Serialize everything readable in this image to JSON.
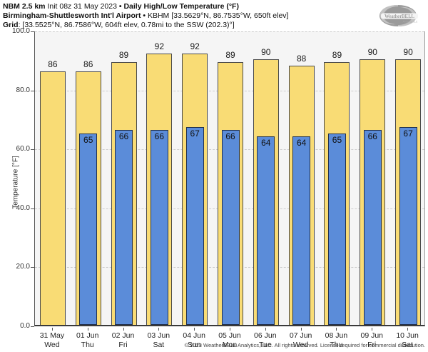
{
  "header": {
    "line1_bold1": "NBM 2.5 km",
    "line1_regular": " Init 08z 31 May 2023 ",
    "line1_sep": "• ",
    "line1_bold2": "Daily High/Low Temperature (°F)",
    "line2_bold": "Birmingham-Shuttlesworth Int'l Airport",
    "line2_sep": " • ",
    "line2_regular": "KBHM [33.5629°N, 86.7535°W, 650ft elev]",
    "line3_bold": "Grid",
    "line3_regular": ": [33.5525°N, 86.7586°W, 604ft elev, 0.78mi to the SSW (202.3)°]"
  },
  "logo": {
    "brand": "WeatherBELL",
    "sub": "Analytics LLC"
  },
  "chart_data": {
    "type": "bar",
    "title": "Daily High/Low Temperature (°F)",
    "ylabel": "Temperature [°F]",
    "ylim": [
      0,
      100
    ],
    "yticks": [
      0,
      20,
      40,
      60,
      80,
      100
    ],
    "ytick_labels": [
      "0.0",
      "20.0",
      "40.0",
      "60.0",
      "80.0",
      "100.0"
    ],
    "grid": "horizontal-dashed",
    "legend_position": "none",
    "categories": [
      {
        "date": "31 May",
        "day": "Wed"
      },
      {
        "date": "01 Jun",
        "day": "Thu"
      },
      {
        "date": "02 Jun",
        "day": "Fri"
      },
      {
        "date": "03 Jun",
        "day": "Sat"
      },
      {
        "date": "04 Jun",
        "day": "Sun"
      },
      {
        "date": "05 Jun",
        "day": "Mon"
      },
      {
        "date": "06 Jun",
        "day": "Tue"
      },
      {
        "date": "07 Jun",
        "day": "Wed"
      },
      {
        "date": "08 Jun",
        "day": "Thu"
      },
      {
        "date": "09 Jun",
        "day": "Fri"
      },
      {
        "date": "10 Jun",
        "day": "Sat"
      }
    ],
    "series": [
      {
        "name": "Daily High",
        "color": "#f9dc75",
        "values": [
          86,
          86,
          89,
          92,
          92,
          89,
          90,
          88,
          89,
          90,
          90
        ]
      },
      {
        "name": "Daily Low",
        "color": "#5b8cd9",
        "values": [
          null,
          65,
          66,
          66,
          67,
          66,
          64,
          64,
          65,
          66,
          67
        ]
      }
    ]
  },
  "footer": "© 2023 WeatherBELL Analytics, LLC. All rights reserved. License required for commercial distribution."
}
